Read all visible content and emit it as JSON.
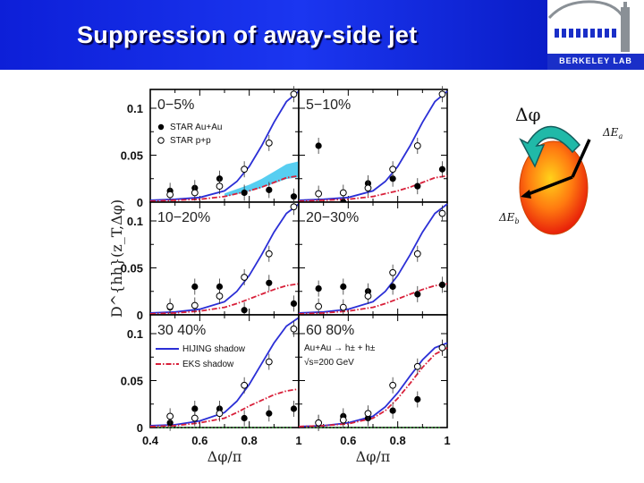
{
  "slide": {
    "title": "Suppression of away-side jet",
    "logo_text": "BERKELEY LAB"
  },
  "colors": {
    "header_blue": "#1b36f0",
    "hijing": "#2b2fd6",
    "eks": "#d8203a",
    "band": "#39c6ee",
    "baseline": "#22aa22"
  },
  "diagram": {
    "dphi_label": "Δφ",
    "ea_label": "ΔE",
    "ea_sub": "a",
    "eb_label": "ΔE",
    "eb_sub": "b"
  },
  "chart_data": {
    "type": "scatter",
    "ylabel": "D^{hh}(z_T,Δφ)",
    "xlabel": "Δφ/π",
    "xlim": [
      0.4,
      1.0
    ],
    "ylim": [
      0,
      0.12
    ],
    "x_ticks": [
      "0.4",
      "0.6",
      "0.8",
      "1"
    ],
    "y_ticks": [
      "0",
      "0.05",
      "0.1"
    ],
    "grid": false,
    "panels": [
      {
        "title": "0−5%",
        "legend": [
          "STAR Au+Au",
          "STAR p+p"
        ],
        "band": true,
        "series": [
          {
            "name": "STAR Au+Au",
            "marker": "filled",
            "x": [
              0.48,
              0.58,
              0.68,
              0.78,
              0.88,
              0.98
            ],
            "y": [
              0.012,
              0.015,
              0.025,
              0.01,
              0.013,
              0.006
            ]
          },
          {
            "name": "STAR p+p",
            "marker": "open",
            "x": [
              0.48,
              0.58,
              0.68,
              0.78,
              0.88,
              0.98
            ],
            "y": [
              0.008,
              0.01,
              0.017,
              0.035,
              0.063,
              0.115
            ]
          },
          {
            "name": "HIJING shadow",
            "line": "solid",
            "x": [
              0.4,
              0.5,
              0.6,
              0.7,
              0.75,
              0.8,
              0.85,
              0.9,
              0.95,
              1.0
            ],
            "y": [
              0.002,
              0.003,
              0.005,
              0.012,
              0.022,
              0.038,
              0.06,
              0.085,
              0.107,
              0.118
            ]
          },
          {
            "name": "EKS shadow",
            "line": "dashdot",
            "x": [
              0.4,
              0.5,
              0.6,
              0.7,
              0.75,
              0.8,
              0.85,
              0.9,
              0.95,
              1.0
            ],
            "y": [
              0.001,
              0.002,
              0.003,
              0.006,
              0.009,
              0.012,
              0.016,
              0.021,
              0.026,
              0.028
            ]
          }
        ]
      },
      {
        "title": "5−10%",
        "legend": [],
        "band": false,
        "series": [
          {
            "name": "STAR Au+Au",
            "marker": "filled",
            "x": [
              0.48,
              0.58,
              0.68,
              0.78,
              0.88,
              0.98
            ],
            "y": [
              0.06,
              0.0,
              0.02,
              0.025,
              0.017,
              0.035
            ]
          },
          {
            "name": "STAR p+p",
            "marker": "open",
            "x": [
              0.48,
              0.58,
              0.68,
              0.78,
              0.88,
              0.98
            ],
            "y": [
              0.009,
              0.01,
              0.015,
              0.035,
              0.06,
              0.115
            ]
          },
          {
            "name": "HIJING shadow",
            "line": "solid",
            "x": [
              0.4,
              0.5,
              0.6,
              0.7,
              0.75,
              0.8,
              0.85,
              0.9,
              0.95,
              1.0
            ],
            "y": [
              0.002,
              0.003,
              0.005,
              0.012,
              0.022,
              0.038,
              0.06,
              0.085,
              0.107,
              0.118
            ]
          },
          {
            "name": "EKS shadow",
            "line": "dashdot",
            "x": [
              0.4,
              0.5,
              0.6,
              0.7,
              0.75,
              0.8,
              0.85,
              0.9,
              0.95,
              1.0
            ],
            "y": [
              0.001,
              0.002,
              0.003,
              0.006,
              0.009,
              0.012,
              0.016,
              0.021,
              0.026,
              0.028
            ]
          }
        ]
      },
      {
        "title": "10−20%",
        "legend": [],
        "band": false,
        "series": [
          {
            "name": "STAR Au+Au",
            "marker": "filled",
            "x": [
              0.48,
              0.58,
              0.68,
              0.78,
              0.88,
              0.98
            ],
            "y": [
              0.008,
              0.03,
              0.03,
              0.005,
              0.034,
              0.012
            ]
          },
          {
            "name": "STAR p+p",
            "marker": "open",
            "x": [
              0.48,
              0.58,
              0.68,
              0.78,
              0.88,
              0.98
            ],
            "y": [
              0.009,
              0.01,
              0.02,
              0.04,
              0.065,
              0.115
            ]
          },
          {
            "name": "HIJING shadow",
            "line": "solid",
            "x": [
              0.4,
              0.5,
              0.6,
              0.7,
              0.75,
              0.8,
              0.85,
              0.9,
              0.95,
              1.0
            ],
            "y": [
              0.002,
              0.003,
              0.006,
              0.014,
              0.025,
              0.042,
              0.064,
              0.088,
              0.108,
              0.118
            ]
          },
          {
            "name": "EKS shadow",
            "line": "dashdot",
            "x": [
              0.4,
              0.5,
              0.6,
              0.7,
              0.75,
              0.8,
              0.85,
              0.9,
              0.95,
              1.0
            ],
            "y": [
              0.001,
              0.002,
              0.004,
              0.008,
              0.012,
              0.017,
              0.022,
              0.027,
              0.031,
              0.033
            ]
          }
        ]
      },
      {
        "title": "20−30%",
        "legend": [],
        "band": false,
        "series": [
          {
            "name": "STAR Au+Au",
            "marker": "filled",
            "x": [
              0.48,
              0.58,
              0.68,
              0.78,
              0.88,
              0.98
            ],
            "y": [
              0.028,
              0.03,
              0.025,
              0.03,
              0.022,
              0.032
            ]
          },
          {
            "name": "STAR p+p",
            "marker": "open",
            "x": [
              0.48,
              0.58,
              0.68,
              0.78,
              0.88,
              0.98
            ],
            "y": [
              0.009,
              0.008,
              0.02,
              0.045,
              0.065,
              0.108
            ]
          },
          {
            "name": "HIJING shadow",
            "line": "solid",
            "x": [
              0.4,
              0.5,
              0.6,
              0.7,
              0.75,
              0.8,
              0.85,
              0.9,
              0.95,
              1.0
            ],
            "y": [
              0.002,
              0.003,
              0.006,
              0.014,
              0.025,
              0.042,
              0.064,
              0.088,
              0.108,
              0.118
            ]
          },
          {
            "name": "EKS shadow",
            "line": "dashdot",
            "x": [
              0.4,
              0.5,
              0.6,
              0.7,
              0.75,
              0.8,
              0.85,
              0.9,
              0.95,
              1.0
            ],
            "y": [
              0.001,
              0.002,
              0.004,
              0.008,
              0.012,
              0.017,
              0.022,
              0.027,
              0.031,
              0.033
            ]
          }
        ]
      },
      {
        "title": "30  40%",
        "legend": [
          "HIJING shadow",
          "EKS shadow"
        ],
        "band": false,
        "series": [
          {
            "name": "STAR Au+Au",
            "marker": "filled",
            "x": [
              0.48,
              0.58,
              0.68,
              0.78,
              0.88,
              0.98
            ],
            "y": [
              0.005,
              0.02,
              0.02,
              0.01,
              0.015,
              0.02
            ]
          },
          {
            "name": "STAR p+p",
            "marker": "open",
            "x": [
              0.48,
              0.58,
              0.68,
              0.78,
              0.88,
              0.98
            ],
            "y": [
              0.012,
              0.01,
              0.015,
              0.045,
              0.07,
              0.105
            ]
          },
          {
            "name": "HIJING shadow",
            "line": "solid",
            "x": [
              0.4,
              0.5,
              0.6,
              0.7,
              0.75,
              0.8,
              0.85,
              0.9,
              0.95,
              1.0
            ],
            "y": [
              0.002,
              0.003,
              0.007,
              0.016,
              0.028,
              0.046,
              0.068,
              0.09,
              0.108,
              0.117
            ]
          },
          {
            "name": "EKS shadow",
            "line": "dashdot",
            "x": [
              0.4,
              0.5,
              0.6,
              0.7,
              0.75,
              0.8,
              0.85,
              0.9,
              0.95,
              1.0
            ],
            "y": [
              0.001,
              0.002,
              0.005,
              0.01,
              0.016,
              0.023,
              0.029,
              0.035,
              0.039,
              0.041
            ]
          }
        ]
      },
      {
        "title": "60  80%",
        "legend": [
          "Au+Au → h± + h±",
          "√s=200 GeV"
        ],
        "band": false,
        "series": [
          {
            "name": "STAR Au+Au",
            "marker": "filled",
            "x": [
              0.48,
              0.58,
              0.68,
              0.78,
              0.88,
              0.98
            ],
            "y": [
              0.005,
              0.012,
              0.01,
              0.018,
              0.03,
              0.085
            ]
          },
          {
            "name": "STAR p+p",
            "marker": "open",
            "x": [
              0.48,
              0.58,
              0.68,
              0.78,
              0.88,
              0.98
            ],
            "y": [
              0.005,
              0.008,
              0.015,
              0.045,
              0.065,
              0.085
            ]
          },
          {
            "name": "HIJING shadow",
            "line": "solid",
            "x": [
              0.4,
              0.5,
              0.6,
              0.7,
              0.75,
              0.8,
              0.85,
              0.9,
              0.95,
              1.0
            ],
            "y": [
              0.001,
              0.002,
              0.005,
              0.012,
              0.022,
              0.037,
              0.055,
              0.072,
              0.085,
              0.09
            ]
          },
          {
            "name": "EKS shadow",
            "line": "dashdot",
            "x": [
              0.4,
              0.5,
              0.6,
              0.7,
              0.75,
              0.8,
              0.85,
              0.9,
              0.95,
              1.0
            ],
            "y": [
              0.001,
              0.002,
              0.004,
              0.01,
              0.018,
              0.031,
              0.047,
              0.064,
              0.078,
              0.085
            ]
          }
        ]
      }
    ]
  }
}
